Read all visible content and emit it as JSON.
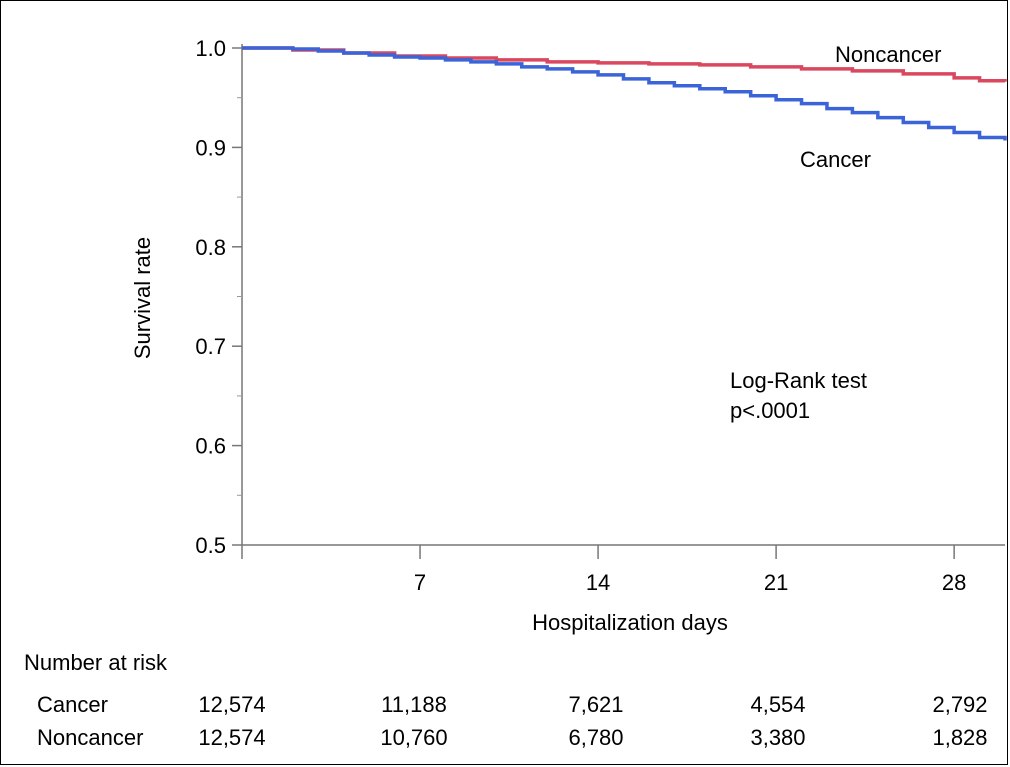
{
  "chart_data": {
    "type": "line",
    "step": true,
    "xlabel": "Hospitalization days",
    "ylabel": "Survival rate",
    "xlim": [
      0,
      30
    ],
    "ylim": [
      0.5,
      1.0
    ],
    "x_ticks": [
      7,
      14,
      21,
      28
    ],
    "y_ticks": [
      "0.5",
      "0.6",
      "0.7",
      "0.8",
      "0.9",
      "1.0"
    ],
    "grid": false,
    "series": [
      {
        "name": "Noncancer",
        "color": "#d9485f",
        "x": [
          0,
          2,
          4,
          6,
          8,
          10,
          12,
          14,
          16,
          18,
          20,
          22,
          24,
          26,
          28,
          29,
          30
        ],
        "y": [
          1.0,
          0.998,
          0.995,
          0.992,
          0.99,
          0.988,
          0.986,
          0.985,
          0.984,
          0.983,
          0.981,
          0.979,
          0.977,
          0.974,
          0.97,
          0.967,
          0.966
        ]
      },
      {
        "name": "Cancer",
        "color": "#3b64d8",
        "x": [
          0,
          1,
          2,
          3,
          4,
          5,
          6,
          7,
          8,
          9,
          10,
          11,
          12,
          13,
          14,
          15,
          16,
          17,
          18,
          19,
          20,
          21,
          22,
          23,
          24,
          25,
          26,
          27,
          28,
          29,
          30
        ],
        "y": [
          1.0,
          1.0,
          0.999,
          0.997,
          0.995,
          0.993,
          0.991,
          0.99,
          0.988,
          0.986,
          0.984,
          0.981,
          0.979,
          0.976,
          0.973,
          0.969,
          0.965,
          0.962,
          0.959,
          0.956,
          0.952,
          0.948,
          0.944,
          0.939,
          0.935,
          0.93,
          0.925,
          0.92,
          0.915,
          0.91,
          0.907
        ]
      }
    ],
    "annotations": [
      "Log-Rank test",
      "p<.0001"
    ]
  },
  "risk_table": {
    "header": "Number at risk",
    "days": [
      0,
      7,
      14,
      21,
      28
    ],
    "rows": [
      {
        "label": "Cancer",
        "values": [
          "12,574",
          "11,188",
          "7,621",
          "4,554",
          "2,792"
        ]
      },
      {
        "label": "Noncancer",
        "values": [
          "12,574",
          "10,760",
          "6,780",
          "3,380",
          "1,828"
        ]
      }
    ]
  }
}
